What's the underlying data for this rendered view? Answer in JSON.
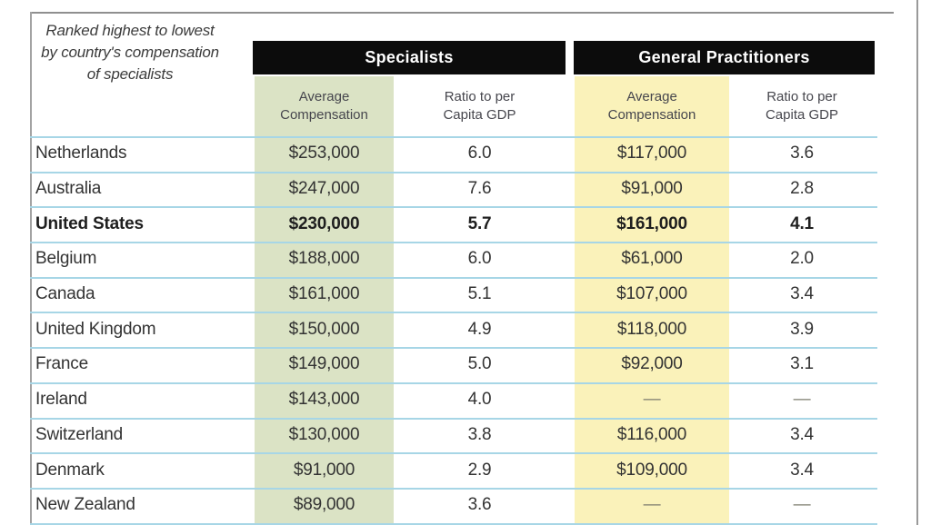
{
  "caption": {
    "lines": [
      "Ranked highest to lowest",
      "by country's compensation",
      "of specialists"
    ]
  },
  "groups": [
    {
      "title": "Specialists",
      "columns": [
        "Average Compensation",
        "Ratio to per Capita GDP"
      ]
    },
    {
      "title": "General Practitioners",
      "columns": [
        "Average Compensation",
        "Ratio to per Capita GDP"
      ]
    }
  ],
  "rows": [
    {
      "country": "Netherlands",
      "spec_avg": "$253,000",
      "spec_ratio": "6.0",
      "gp_avg": "$117,000",
      "gp_ratio": "3.6",
      "emphasis": false
    },
    {
      "country": "Australia",
      "spec_avg": "$247,000",
      "spec_ratio": "7.6",
      "gp_avg": "$91,000",
      "gp_ratio": "2.8",
      "emphasis": false
    },
    {
      "country": "United States",
      "spec_avg": "$230,000",
      "spec_ratio": "5.7",
      "gp_avg": "$161,000",
      "gp_ratio": "4.1",
      "emphasis": true
    },
    {
      "country": "Belgium",
      "spec_avg": "$188,000",
      "spec_ratio": "6.0",
      "gp_avg": "$61,000",
      "gp_ratio": "2.0",
      "emphasis": false
    },
    {
      "country": "Canada",
      "spec_avg": "$161,000",
      "spec_ratio": "5.1",
      "gp_avg": "$107,000",
      "gp_ratio": "3.4",
      "emphasis": false
    },
    {
      "country": "United Kingdom",
      "spec_avg": "$150,000",
      "spec_ratio": "4.9",
      "gp_avg": "$118,000",
      "gp_ratio": "3.9",
      "emphasis": false
    },
    {
      "country": "France",
      "spec_avg": "$149,000",
      "spec_ratio": "5.0",
      "gp_avg": "$92,000",
      "gp_ratio": "3.1",
      "emphasis": false
    },
    {
      "country": "Ireland",
      "spec_avg": "$143,000",
      "spec_ratio": "4.0",
      "gp_avg": "—",
      "gp_ratio": "—",
      "emphasis": false
    },
    {
      "country": "Switzerland",
      "spec_avg": "$130,000",
      "spec_ratio": "3.8",
      "gp_avg": "$116,000",
      "gp_ratio": "3.4",
      "emphasis": false
    },
    {
      "country": "Denmark",
      "spec_avg": "$91,000",
      "spec_ratio": "2.9",
      "gp_avg": "$109,000",
      "gp_ratio": "3.4",
      "emphasis": false
    },
    {
      "country": "New Zealand",
      "spec_avg": "$89,000",
      "spec_ratio": "3.6",
      "gp_avg": "—",
      "gp_ratio": "—",
      "emphasis": false
    }
  ],
  "colors": {
    "specialists_highlight": "#dbe3c5",
    "gp_highlight": "#faf2ba",
    "row_divider": "#a7d6e6",
    "header_bar": "#0c0c0c"
  }
}
